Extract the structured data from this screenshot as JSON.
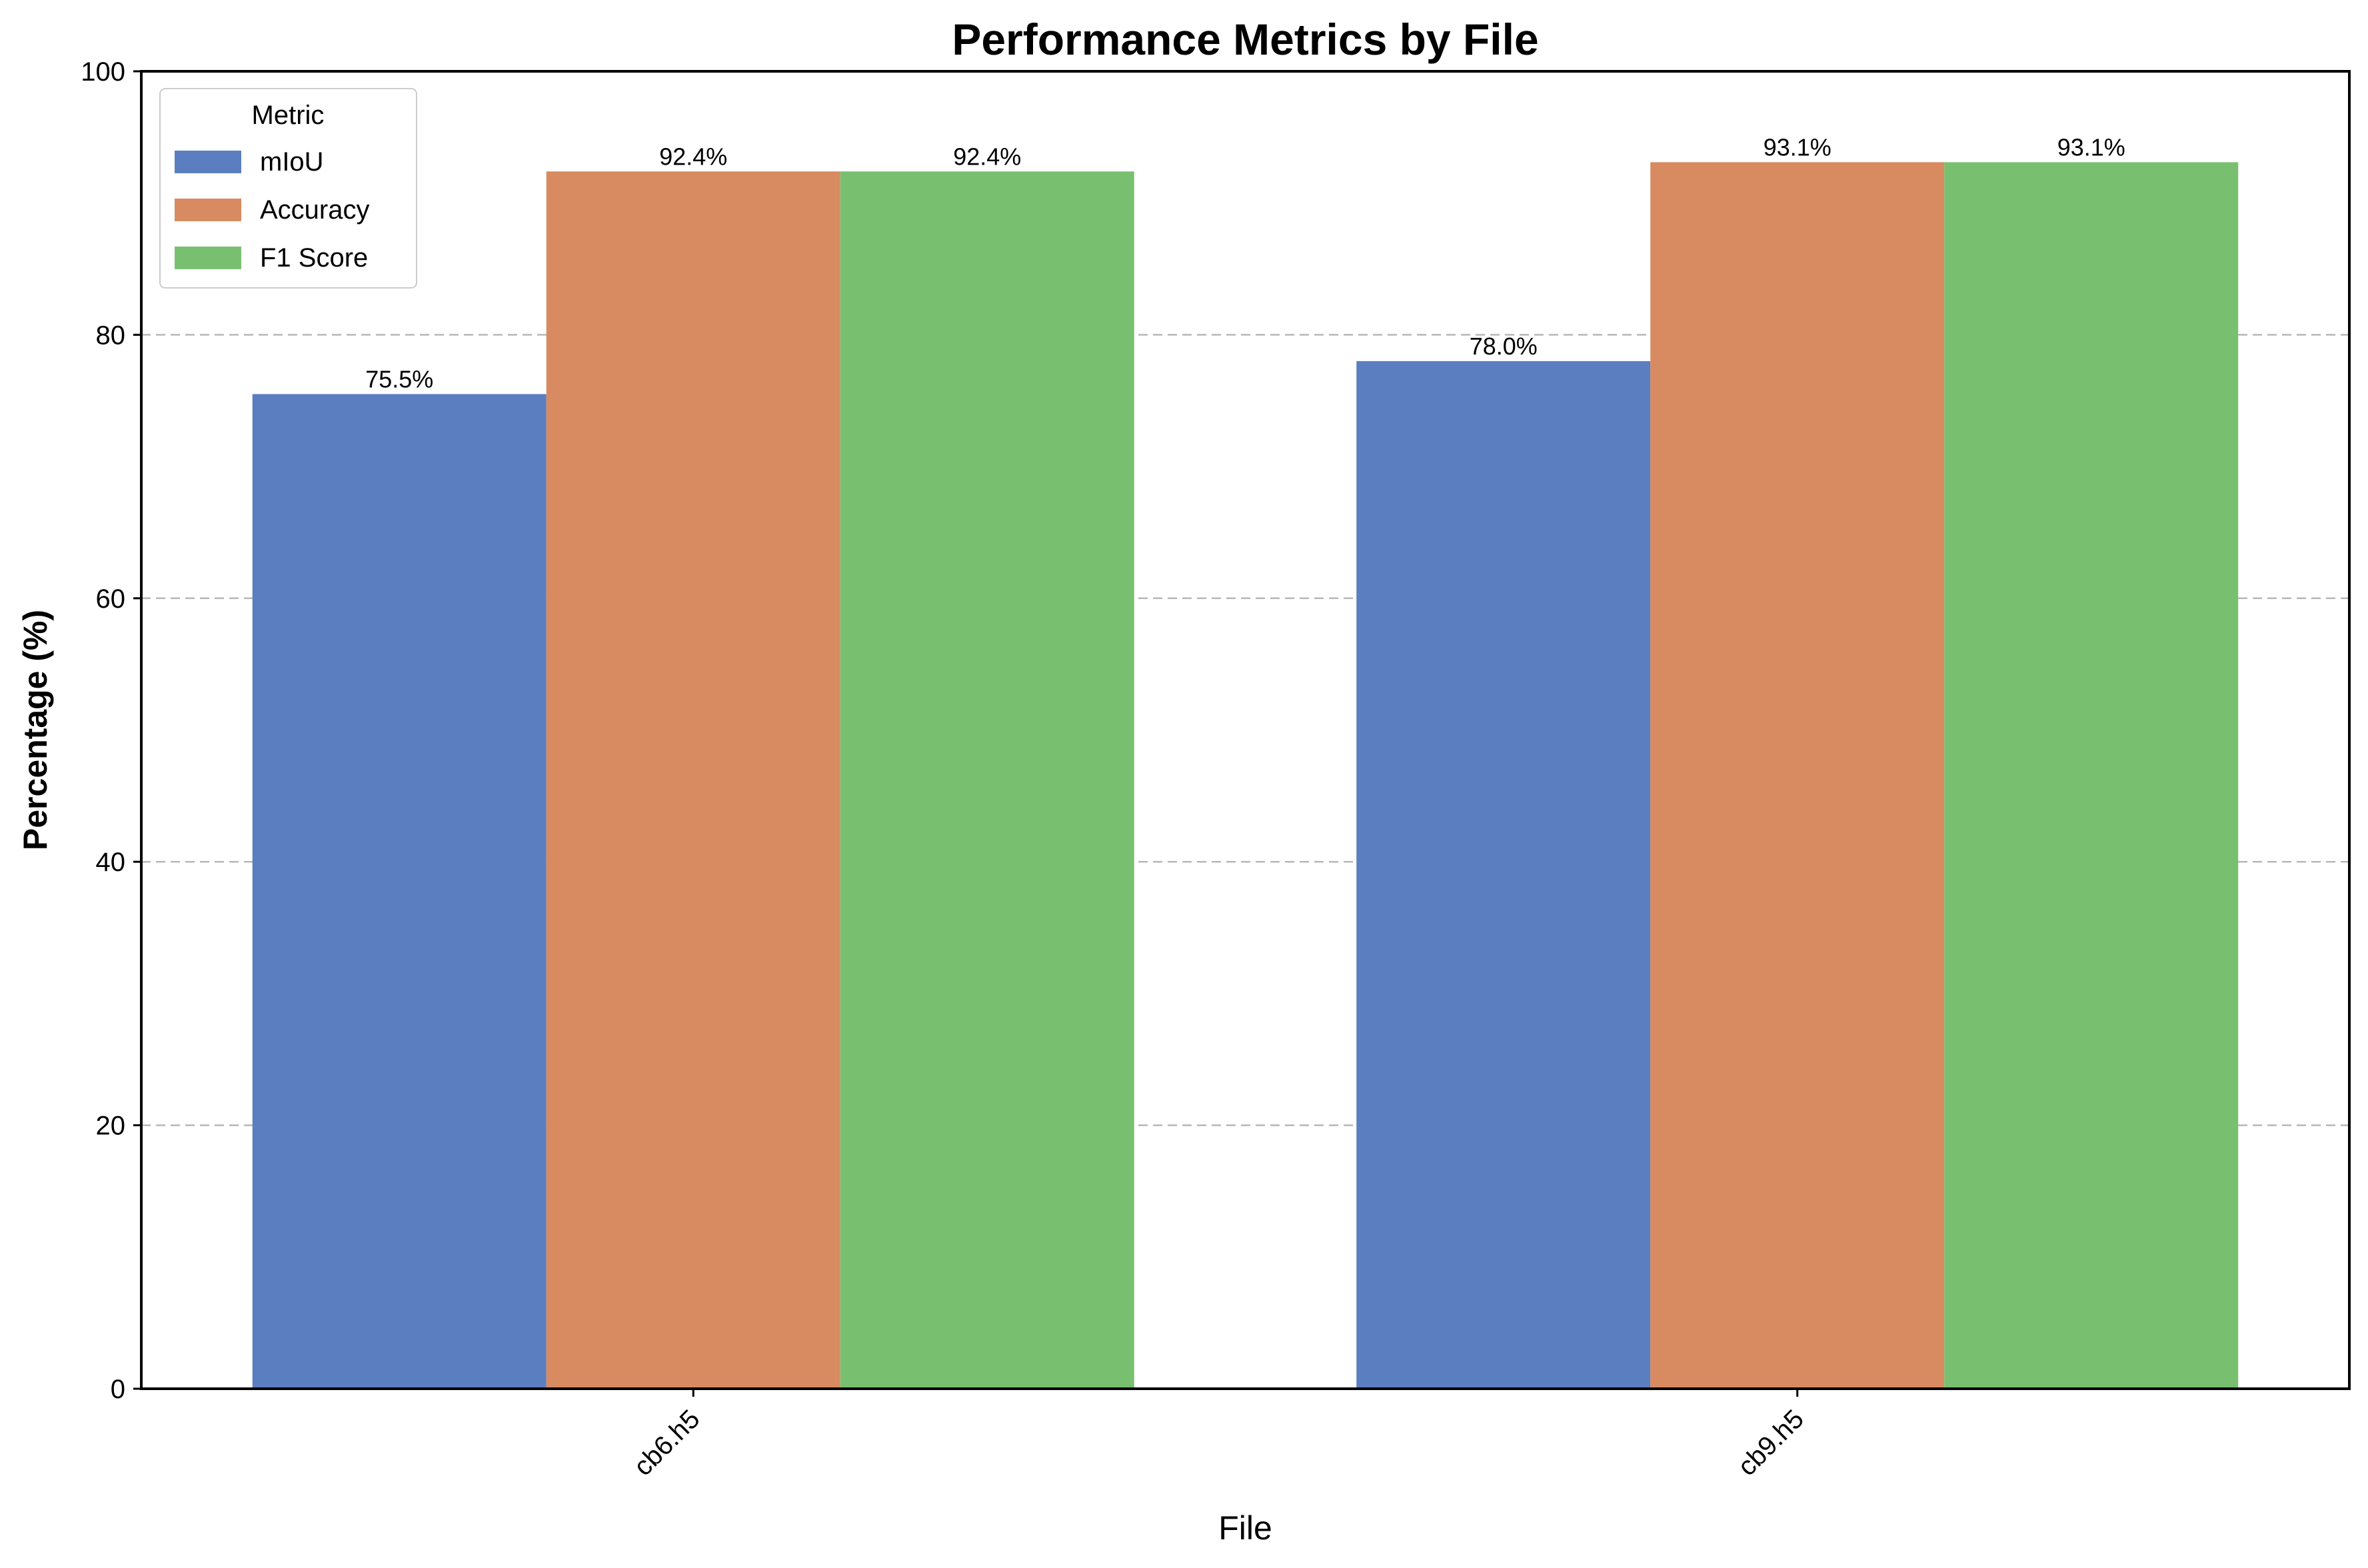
{
  "chart_data": {
    "type": "bar",
    "title": "Performance Metrics by File",
    "xlabel": "File",
    "ylabel": "Percentage (%)",
    "categories": [
      "cb6.h5",
      "cb9.h5"
    ],
    "series": [
      {
        "name": "mIoU",
        "values": [
          75.5,
          78.0
        ],
        "labels": [
          "75.5%",
          "78.0%"
        ],
        "color": "#5b7ec0"
      },
      {
        "name": "Accuracy",
        "values": [
          92.4,
          93.1
        ],
        "labels": [
          "92.4%",
          "93.1%"
        ],
        "color": "#d88a60"
      },
      {
        "name": "F1 Score",
        "values": [
          92.4,
          93.1
        ],
        "labels": [
          "92.4%",
          "93.1%"
        ],
        "color": "#78c070"
      }
    ],
    "ylim": [
      0,
      100
    ],
    "yticks": [
      0,
      20,
      40,
      60,
      80,
      100
    ],
    "grid": "y-dashed",
    "legend": {
      "title": "Metric",
      "placement": "top-left"
    }
  }
}
